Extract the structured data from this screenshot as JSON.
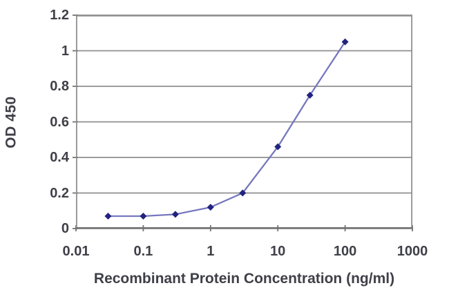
{
  "chart_data": {
    "type": "line",
    "title": "",
    "xlabel": "Recombinant Protein Concentration (ng/ml)",
    "ylabel": "OD 450",
    "x_scale": "log",
    "xlim": [
      0.01,
      1000
    ],
    "ylim": [
      0,
      1.2
    ],
    "x_ticks": [
      0.01,
      0.1,
      1,
      10,
      100,
      1000
    ],
    "x_tick_labels": [
      "0.01",
      "0.1",
      "1",
      "10",
      "100",
      "1000"
    ],
    "y_ticks": [
      0,
      0.2,
      0.4,
      0.6,
      0.8,
      1,
      1.2
    ],
    "y_tick_labels": [
      "0",
      "0.2",
      "0.4",
      "0.6",
      "0.8",
      "1",
      "1.2"
    ],
    "grid": "horizontal",
    "legend": "none",
    "series": [
      {
        "name": "OD 450",
        "marker": "diamond",
        "x": [
          0.03,
          0.1,
          0.3,
          1,
          3,
          10,
          30,
          100
        ],
        "y": [
          0.07,
          0.07,
          0.08,
          0.12,
          0.2,
          0.46,
          0.75,
          1.05
        ]
      }
    ],
    "colors": {
      "line": "#7577bd",
      "marker": "#22227f",
      "grid": "#8f8f8f",
      "frame": "#8f8f8f",
      "axis": "#737373",
      "text": "#3f3f48"
    }
  }
}
